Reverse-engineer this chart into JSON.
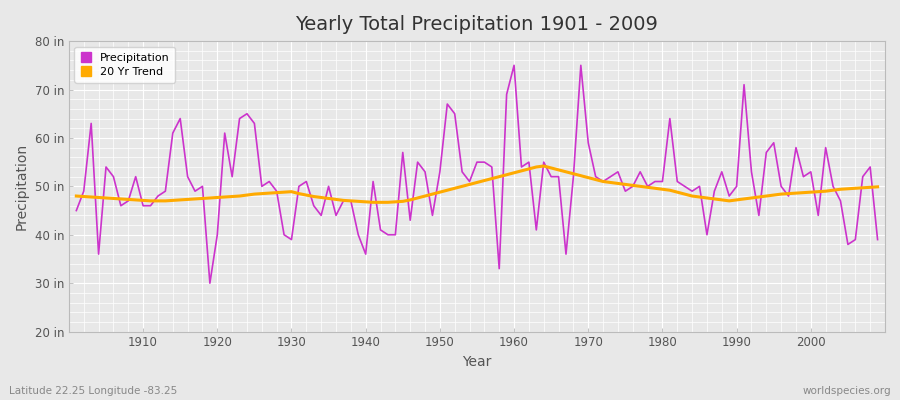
{
  "title": "Yearly Total Precipitation 1901 - 2009",
  "xlabel": "Year",
  "ylabel": "Precipitation",
  "subtitle_left": "Latitude 22.25 Longitude -83.25",
  "subtitle_right": "worldspecies.org",
  "ylim": [
    20,
    80
  ],
  "yticks": [
    20,
    30,
    40,
    50,
    60,
    70,
    80
  ],
  "ytick_labels": [
    "20 in",
    "30 in",
    "40 in",
    "50 in",
    "60 in",
    "70 in",
    "80 in"
  ],
  "xlim": [
    1900,
    2010
  ],
  "xticks": [
    1910,
    1920,
    1930,
    1940,
    1950,
    1960,
    1970,
    1980,
    1990,
    2000
  ],
  "precip_color": "#cc33cc",
  "trend_color": "#ffaa00",
  "fig_bg_color": "#e8e8e8",
  "plot_bg_color": "#e8e8e8",
  "grid_color": "#ffffff",
  "years": [
    1901,
    1902,
    1903,
    1904,
    1905,
    1906,
    1907,
    1908,
    1909,
    1910,
    1911,
    1912,
    1913,
    1914,
    1915,
    1916,
    1917,
    1918,
    1919,
    1920,
    1921,
    1922,
    1923,
    1924,
    1925,
    1926,
    1927,
    1928,
    1929,
    1930,
    1931,
    1932,
    1933,
    1934,
    1935,
    1936,
    1937,
    1938,
    1939,
    1940,
    1941,
    1942,
    1943,
    1944,
    1945,
    1946,
    1947,
    1948,
    1949,
    1950,
    1951,
    1952,
    1953,
    1954,
    1955,
    1956,
    1957,
    1958,
    1959,
    1960,
    1961,
    1962,
    1963,
    1964,
    1965,
    1966,
    1967,
    1968,
    1969,
    1970,
    1971,
    1972,
    1973,
    1974,
    1975,
    1976,
    1977,
    1978,
    1979,
    1980,
    1981,
    1982,
    1983,
    1984,
    1985,
    1986,
    1987,
    1988,
    1989,
    1990,
    1991,
    1992,
    1993,
    1994,
    1995,
    1996,
    1997,
    1998,
    1999,
    2000,
    2001,
    2002,
    2003,
    2004,
    2005,
    2006,
    2007,
    2008,
    2009
  ],
  "precip": [
    45,
    49,
    63,
    36,
    54,
    52,
    46,
    47,
    52,
    46,
    46,
    48,
    49,
    61,
    64,
    52,
    49,
    50,
    30,
    40,
    61,
    52,
    64,
    65,
    63,
    50,
    51,
    49,
    40,
    39,
    50,
    51,
    46,
    44,
    50,
    44,
    47,
    47,
    40,
    36,
    51,
    41,
    40,
    40,
    57,
    43,
    55,
    53,
    44,
    53,
    67,
    65,
    53,
    51,
    55,
    55,
    54,
    33,
    69,
    75,
    54,
    55,
    41,
    55,
    52,
    52,
    36,
    52,
    75,
    59,
    52,
    51,
    52,
    53,
    49,
    50,
    53,
    50,
    51,
    51,
    64,
    51,
    50,
    49,
    50,
    40,
    49,
    53,
    48,
    50,
    71,
    53,
    44,
    57,
    59,
    50,
    48,
    58,
    52,
    53,
    44,
    58,
    50,
    47,
    38,
    39,
    52,
    54,
    39
  ],
  "trend": [
    48.0,
    47.9,
    47.8,
    47.7,
    47.6,
    47.5,
    47.4,
    47.3,
    47.2,
    47.1,
    47.0,
    47.0,
    47.0,
    47.1,
    47.2,
    47.3,
    47.4,
    47.5,
    47.6,
    47.7,
    47.8,
    47.9,
    48.0,
    48.2,
    48.4,
    48.5,
    48.6,
    48.7,
    48.8,
    48.9,
    48.5,
    48.2,
    47.9,
    47.7,
    47.5,
    47.3,
    47.1,
    47.0,
    46.9,
    46.8,
    46.7,
    46.7,
    46.7,
    46.8,
    46.9,
    47.2,
    47.6,
    48.0,
    48.4,
    48.8,
    49.2,
    49.6,
    50.0,
    50.4,
    50.8,
    51.2,
    51.6,
    52.0,
    52.4,
    52.8,
    53.2,
    53.6,
    54.0,
    54.2,
    53.8,
    53.4,
    53.0,
    52.6,
    52.2,
    51.8,
    51.4,
    51.0,
    50.8,
    50.6,
    50.4,
    50.2,
    50.0,
    49.8,
    49.6,
    49.4,
    49.2,
    48.8,
    48.4,
    48.0,
    47.8,
    47.6,
    47.4,
    47.2,
    47.0,
    47.2,
    47.4,
    47.6,
    47.8,
    48.0,
    48.2,
    48.4,
    48.5,
    48.6,
    48.7,
    48.8,
    48.9,
    49.0,
    49.2,
    49.4,
    49.5,
    49.6,
    49.7,
    49.8,
    49.9
  ]
}
